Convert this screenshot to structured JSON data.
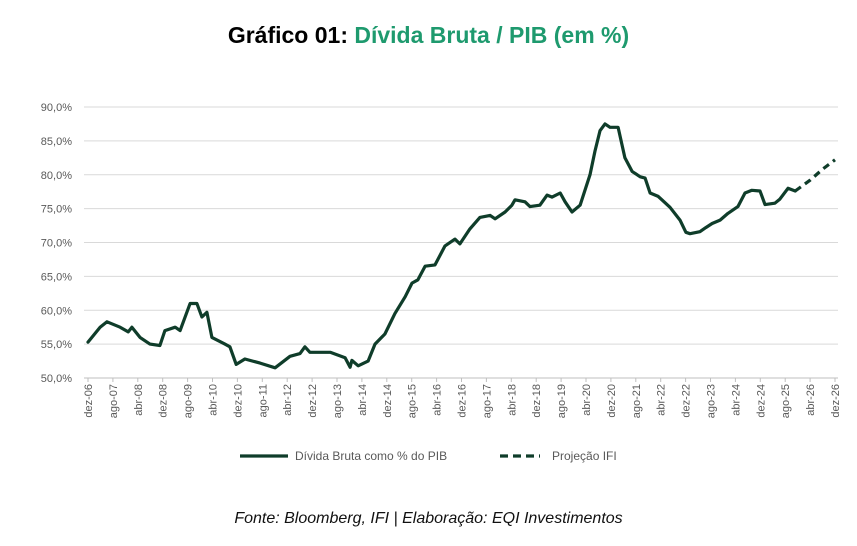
{
  "chart_data": {
    "type": "line",
    "title_prefix": "Gráfico 01:",
    "title": "Dívida Bruta / PIB (em %)",
    "source": "Fonte: Bloomberg, IFI | Elaboração: EQI Investimentos",
    "ylim": [
      50,
      90
    ],
    "yticks": [
      "50,0%",
      "55,0%",
      "60,0%",
      "65,0%",
      "70,0%",
      "75,0%",
      "80,0%",
      "85,0%",
      "90,0%"
    ],
    "xlim_months_since_dez06": [
      0,
      240
    ],
    "xticks": [
      "dez-06",
      "ago-07",
      "abr-08",
      "dez-08",
      "ago-09",
      "abr-10",
      "dez-10",
      "ago-11",
      "abr-12",
      "dez-12",
      "ago-13",
      "abr-14",
      "dez-14",
      "ago-15",
      "abr-16",
      "dez-16",
      "ago-17",
      "abr-18",
      "dez-18",
      "ago-19",
      "abr-20",
      "dez-20",
      "ago-21",
      "abr-22",
      "dez-22",
      "ago-23",
      "abr-24",
      "dez-24",
      "ago-25",
      "abr-26",
      "dez-26"
    ],
    "grid": true,
    "legend_position": "bottom",
    "series": [
      {
        "name": "Dívida Bruta como % do PIB",
        "style": "solid",
        "color": "#0f3d2a",
        "x": [
          0,
          3.9,
          6.1,
          10.3,
          12.9,
          14.1,
          16.7,
          19.9,
          23.1,
          24.7,
          28,
          29.6,
          32.8,
          35,
          36.6,
          38.2,
          39.8,
          44,
          45.6,
          47.6,
          50.4,
          55.3,
          60.1,
          64.9,
          68.1,
          69.7,
          71.3,
          77.8,
          82.6,
          84.2,
          84.8,
          86.8,
          90,
          92.2,
          95.4,
          98.6,
          101.9,
          104.1,
          106,
          108.3,
          111.5,
          114.7,
          117.9,
          119.5,
          122.7,
          125.9,
          129.2,
          130.8,
          134,
          136.2,
          137.2,
          140.4,
          142,
          145.2,
          147.5,
          149.1,
          151.7,
          153.3,
          155.5,
          158.1,
          161.3,
          162.9,
          164.5,
          166.1,
          167.7,
          170.3,
          172.5,
          174.8,
          177.4,
          179,
          180.6,
          183.2,
          184.4,
          187,
          190.2,
          192.1,
          193.4,
          196.6,
          198.5,
          200.5,
          203.1,
          205.6,
          208.8,
          211.1,
          213.3,
          215.9,
          217.5,
          220.7,
          222.3,
          224.9,
          227.2
        ],
        "y": [
          55.3,
          57.5,
          58.3,
          57.5,
          56.8,
          57.5,
          56,
          55,
          54.8,
          57,
          57.5,
          57,
          61,
          61,
          59,
          59.7,
          56,
          55,
          54.6,
          52,
          52.8,
          52.2,
          51.5,
          53.2,
          53.6,
          54.6,
          53.8,
          53.8,
          53,
          51.6,
          52.6,
          51.8,
          52.5,
          55,
          56.5,
          59.5,
          62,
          64,
          64.5,
          66.5,
          66.7,
          69.5,
          70.5,
          69.8,
          72,
          73.7,
          74,
          73.5,
          74.5,
          75.5,
          76.3,
          76,
          75.3,
          75.5,
          77,
          76.7,
          77.3,
          76,
          74.5,
          75.5,
          80,
          83.5,
          86.5,
          87.5,
          87,
          87,
          82.5,
          80.5,
          79.7,
          79.5,
          77.3,
          76.8,
          76.3,
          75.2,
          73.3,
          71.5,
          71.3,
          71.6,
          72.2,
          72.8,
          73.3,
          74.3,
          75.3,
          77.3,
          77.7,
          77.6,
          75.6,
          75.8,
          76.4,
          78,
          77.6
        ]
      },
      {
        "name": "Projeção IFI",
        "style": "dashed",
        "color": "#0f3d2a",
        "x": [
          227.2,
          232,
          236,
          240
        ],
        "y": [
          77.6,
          79.2,
          80.8,
          82.2
        ]
      }
    ]
  }
}
